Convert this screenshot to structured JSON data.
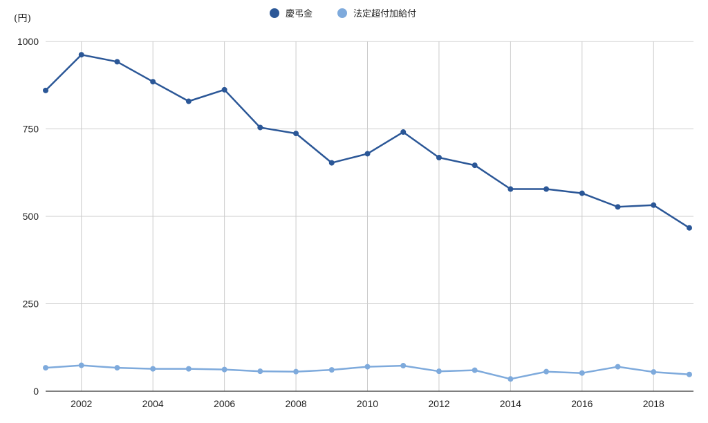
{
  "chart_data": {
    "type": "line",
    "y_unit_label": "(円)",
    "x": [
      2001,
      2002,
      2003,
      2004,
      2005,
      2006,
      2007,
      2008,
      2009,
      2010,
      2011,
      2012,
      2013,
      2014,
      2015,
      2016,
      2017,
      2018,
      2019
    ],
    "x_tick_labels": [
      "2002",
      "2004",
      "2006",
      "2008",
      "2010",
      "2012",
      "2014",
      "2016",
      "2018"
    ],
    "ylim": [
      0,
      1000
    ],
    "y_ticks": [
      0,
      250,
      500,
      750,
      1000
    ],
    "grid": true,
    "legend_position": "top-center",
    "series": [
      {
        "name": "慶弔金",
        "color": "#2b5797",
        "values": [
          860,
          962,
          942,
          885,
          829,
          862,
          754,
          737,
          653,
          679,
          741,
          668,
          646,
          578,
          578,
          566,
          527,
          532,
          467
        ]
      },
      {
        "name": "法定超付加給付",
        "color": "#7eaadc",
        "values": [
          67,
          74,
          67,
          64,
          64,
          62,
          57,
          56,
          61,
          70,
          73,
          57,
          60,
          35,
          56,
          52,
          70,
          55,
          48
        ]
      }
    ]
  }
}
